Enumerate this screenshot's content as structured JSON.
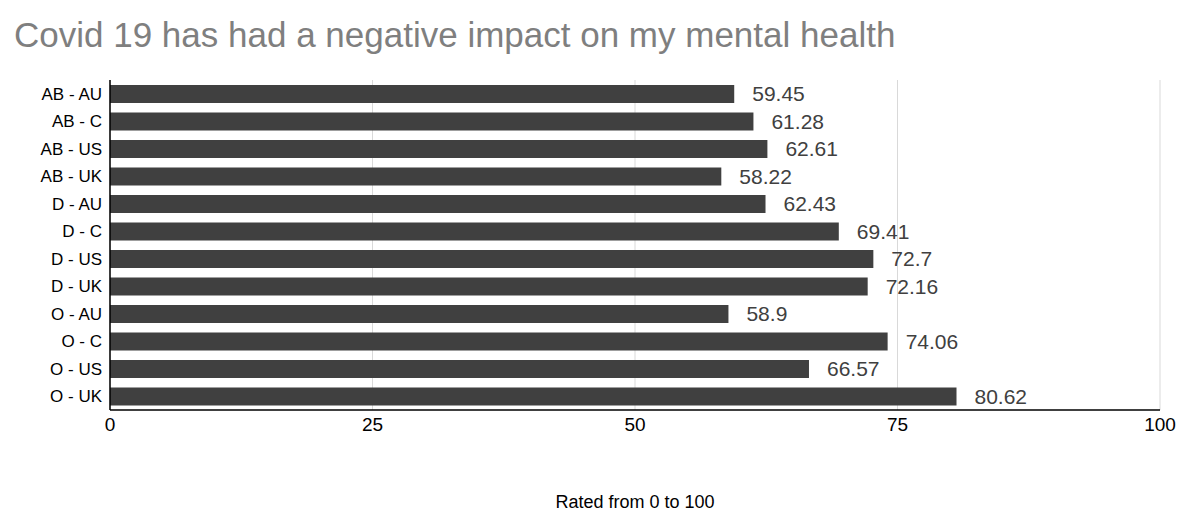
{
  "chart_data": {
    "type": "bar",
    "title": "Covid 19 has had a negative impact on my mental health",
    "x_label": "Rated from 0 to 100",
    "categories": [
      "AB - AU",
      "AB - C",
      "AB - US",
      "AB - UK",
      "D - AU",
      "D - C",
      "D - US",
      "D - UK",
      "O - AU",
      "O - C",
      "O - US",
      "O - UK"
    ],
    "values": [
      59.45,
      61.28,
      62.61,
      58.22,
      62.43,
      69.41,
      72.7,
      72.16,
      58.9,
      74.06,
      66.57,
      80.62
    ],
    "color": "#404040",
    "orientation": "horizontal",
    "xlim": [
      0,
      100
    ],
    "xticks": [
      0,
      25,
      50,
      75,
      100
    ],
    "grid": true,
    "data_labels": true
  }
}
